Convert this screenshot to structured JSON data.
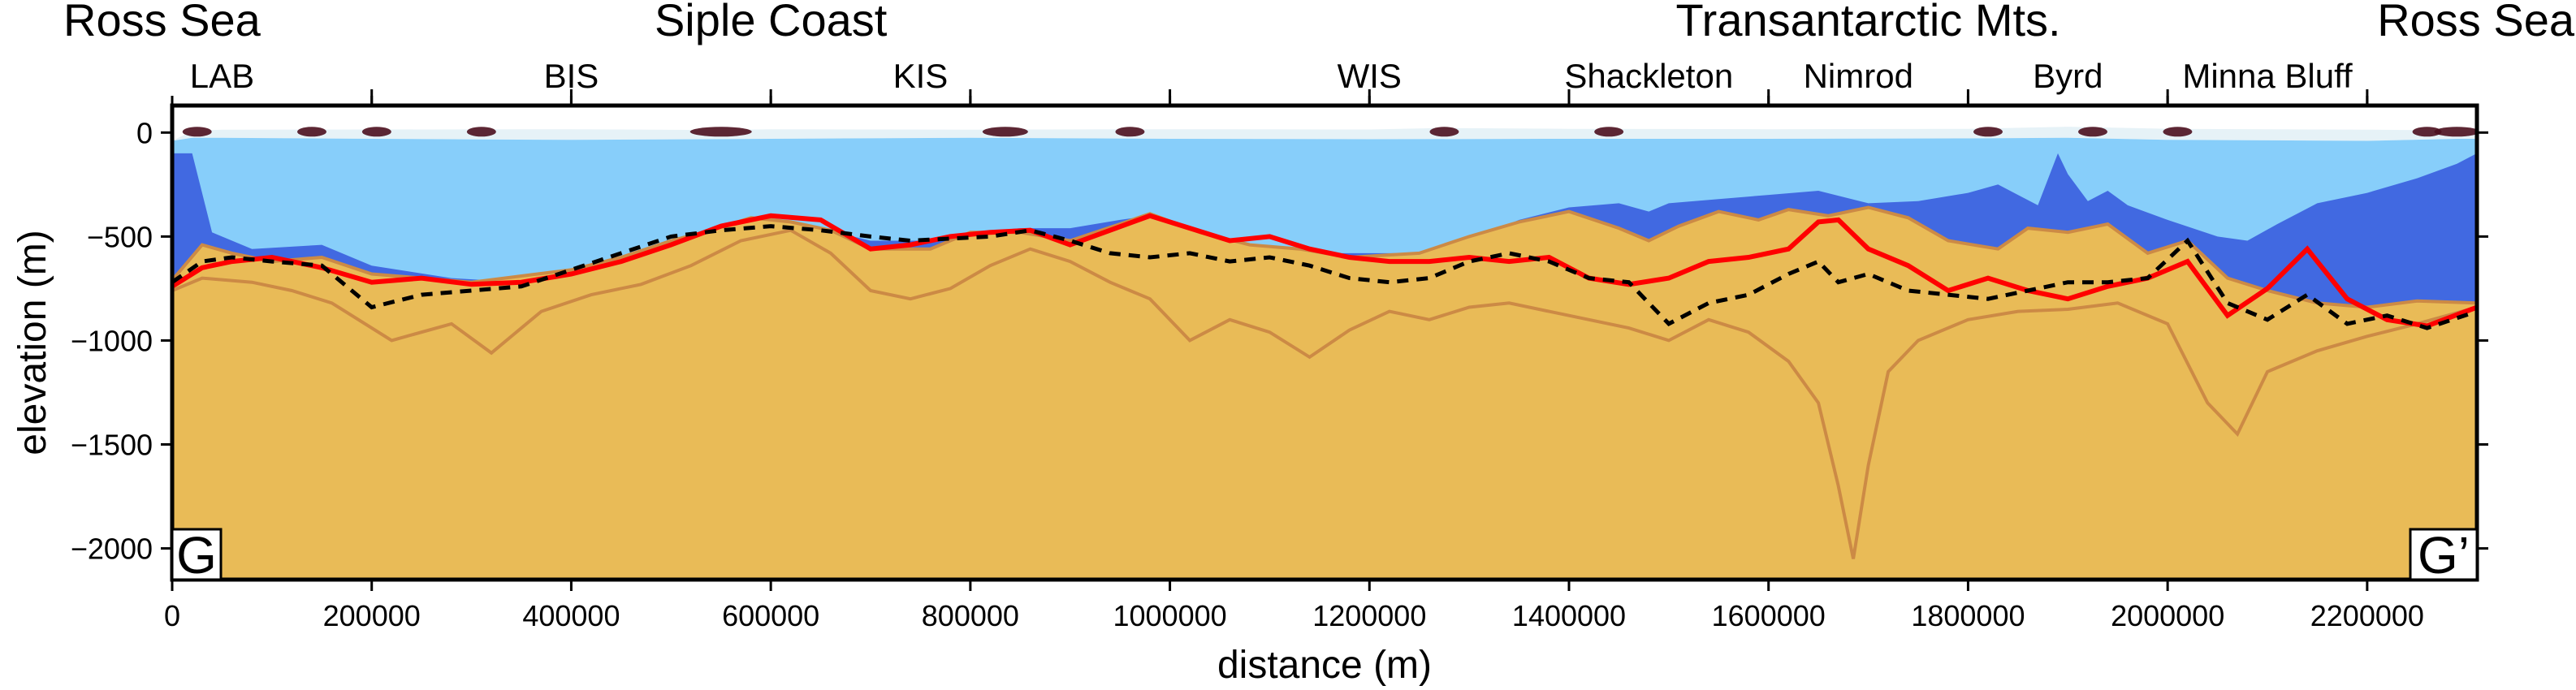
{
  "chart_data": {
    "type": "area",
    "xlabel": "distance (m)",
    "ylabel": "elevation (m)",
    "xlim": [
      0,
      2310000
    ],
    "ylim": [
      -2150,
      130
    ],
    "x_ticks": [
      0,
      200000,
      400000,
      600000,
      800000,
      1000000,
      1200000,
      1400000,
      1600000,
      1800000,
      2000000,
      2200000
    ],
    "x_tick_labels": [
      "0",
      "200000",
      "400000",
      "600000",
      "800000",
      "1000000",
      "1200000",
      "1400000",
      "1600000",
      "1800000",
      "2000000",
      "2200000"
    ],
    "y_ticks": [
      0,
      -500,
      -1000,
      -1500,
      -2000
    ],
    "y_tick_labels": [
      "0",
      "−500",
      "−1000",
      "−1500",
      "−2000"
    ],
    "region_labels": [
      {
        "text": "Ross Sea",
        "x": 0,
        "anchor": "start"
      },
      {
        "text": "Siple Coast",
        "x": 600000,
        "anchor": "middle"
      },
      {
        "text": "Transantarctic Mts.",
        "x": 1700000,
        "anchor": "middle"
      },
      {
        "text": "Ross Sea",
        "x": 2310000,
        "anchor": "end"
      }
    ],
    "glacier_labels": [
      {
        "text": "LAB",
        "x": 50000
      },
      {
        "text": "BIS",
        "x": 400000
      },
      {
        "text": "KIS",
        "x": 750000
      },
      {
        "text": "WIS",
        "x": 1200000
      },
      {
        "text": "Shackleton",
        "x": 1480000
      },
      {
        "text": "Nimrod",
        "x": 1690000
      },
      {
        "text": "Byrd",
        "x": 1900000
      },
      {
        "text": "Minna Bluff",
        "x": 2100000
      }
    ],
    "top_ticks": [
      200000,
      400000,
      600000,
      800000,
      1000000,
      1200000,
      1400000,
      1600000,
      1800000,
      2000000,
      2200000
    ],
    "profile_labels": [
      "G",
      "G’"
    ],
    "colors": {
      "ice": "#e6f2f7",
      "water": "#87cefa",
      "uncertainty": "#4169e1",
      "bed": "#e9bb57",
      "envelope": "#cc8a45",
      "inversion": "#ff0000",
      "reference": "#000000",
      "hotspot": "#4b0f1e"
    },
    "series": [
      {
        "name": "ice surface",
        "x": [
          0,
          20000,
          50000,
          200000,
          400000,
          550000,
          600000,
          800000,
          1000000,
          1200000,
          1270000,
          1400000,
          1600000,
          1800000,
          1900000,
          2000000,
          2200000,
          2290000,
          2310000
        ],
        "values": [
          -40,
          8,
          14,
          15,
          16,
          12,
          16,
          14,
          16,
          15,
          22,
          18,
          16,
          18,
          28,
          18,
          14,
          10,
          8
        ]
      },
      {
        "name": "ice base",
        "x": [
          0,
          20000,
          50000,
          200000,
          400000,
          600000,
          800000,
          1000000,
          1200000,
          1400000,
          1600000,
          1800000,
          1900000,
          2000000,
          2200000,
          2290000,
          2310000
        ],
        "values": [
          -40,
          -25,
          -25,
          -30,
          -35,
          -30,
          -25,
          -30,
          -32,
          -30,
          -30,
          -28,
          -25,
          -35,
          -40,
          -30,
          -30
        ]
      },
      {
        "name": "upper bathymetry",
        "x": [
          0,
          20000,
          40000,
          80000,
          150000,
          200000,
          280000,
          350000,
          400000,
          450000,
          500000,
          540000,
          580000,
          640000,
          700000,
          760000,
          800000,
          850000,
          900000,
          950000,
          980000,
          1030000,
          1100000,
          1150000,
          1200000,
          1250000,
          1300000,
          1350000,
          1400000,
          1450000,
          1480000,
          1500000,
          1550000,
          1600000,
          1650000,
          1700000,
          1750000,
          1800000,
          1830000,
          1850000,
          1870000,
          1890000,
          1900000,
          1920000,
          1940000,
          1960000,
          2000000,
          2050000,
          2080000,
          2110000,
          2150000,
          2200000,
          2250000,
          2290000,
          2310000
        ],
        "values": [
          -100,
          -100,
          -480,
          -560,
          -540,
          -640,
          -700,
          -720,
          -700,
          -640,
          -550,
          -470,
          -450,
          -450,
          -520,
          -520,
          -480,
          -460,
          -460,
          -420,
          -400,
          -500,
          -560,
          -580,
          -580,
          -580,
          -520,
          -420,
          -360,
          -340,
          -380,
          -340,
          -320,
          -300,
          -280,
          -340,
          -330,
          -290,
          -250,
          -300,
          -350,
          -100,
          -200,
          -330,
          -280,
          -350,
          -420,
          -500,
          -520,
          -440,
          -340,
          -290,
          -220,
          -150,
          -100
        ]
      },
      {
        "name": "lower bathymetry",
        "x": [
          0,
          40000,
          100000,
          200000,
          280000,
          350000,
          400000,
          450000,
          500000,
          550000,
          600000,
          650000,
          700000,
          750000,
          800000,
          850000,
          900000,
          950000,
          1000000,
          1050000,
          1100000,
          1150000,
          1200000,
          1250000,
          1300000,
          1350000,
          1400000,
          1450000,
          1500000,
          1550000,
          1600000,
          1640000,
          1680000,
          1720000,
          1780000,
          1830000,
          1860000,
          1900000,
          1960000,
          2000000,
          2040000,
          2070000,
          2100000,
          2150000,
          2200000,
          2250000,
          2310000
        ],
        "values": [
          -720,
          -700,
          -760,
          -820,
          -800,
          -760,
          -730,
          -700,
          -660,
          -600,
          -480,
          -520,
          -690,
          -720,
          -650,
          -520,
          -560,
          -650,
          -760,
          -750,
          -800,
          -780,
          -750,
          -780,
          -700,
          -680,
          -710,
          -800,
          -850,
          -800,
          -720,
          -760,
          -1280,
          -900,
          -870,
          -830,
          -800,
          -760,
          -720,
          -700,
          -900,
          -1250,
          -1100,
          -920,
          -900,
          -870,
          -830
        ]
      },
      {
        "name": "bed envelope upper",
        "x": [
          0,
          30000,
          60000,
          100000,
          150000,
          200000,
          250000,
          300000,
          350000,
          400000,
          450000,
          500000,
          540000,
          580000,
          620000,
          660000,
          700000,
          760000,
          800000,
          850000,
          900000,
          950000,
          980000,
          1030000,
          1080000,
          1130000,
          1180000,
          1250000,
          1300000,
          1350000,
          1400000,
          1450000,
          1480000,
          1510000,
          1550000,
          1590000,
          1620000,
          1660000,
          1700000,
          1740000,
          1780000,
          1830000,
          1860000,
          1900000,
          1940000,
          1980000,
          2020000,
          2060000,
          2100000,
          2150000,
          2200000,
          2250000,
          2310000
        ],
        "values": [
          -710,
          -540,
          -580,
          -620,
          -600,
          -680,
          -700,
          -720,
          -690,
          -660,
          -600,
          -520,
          -470,
          -410,
          -430,
          -470,
          -560,
          -560,
          -480,
          -480,
          -520,
          -440,
          -390,
          -480,
          -540,
          -560,
          -600,
          -580,
          -500,
          -430,
          -380,
          -460,
          -520,
          -450,
          -380,
          -420,
          -370,
          -400,
          -360,
          -410,
          -520,
          -560,
          -460,
          -480,
          -440,
          -580,
          -520,
          -700,
          -760,
          -820,
          -840,
          -810,
          -820
        ]
      },
      {
        "name": "bed envelope lower",
        "x": [
          0,
          30000,
          80000,
          120000,
          160000,
          220000,
          280000,
          320000,
          370000,
          420000,
          470000,
          520000,
          570000,
          620000,
          660000,
          700000,
          740000,
          780000,
          820000,
          860000,
          900000,
          940000,
          980000,
          1020000,
          1060000,
          1100000,
          1140000,
          1180000,
          1220000,
          1260000,
          1300000,
          1340000,
          1380000,
          1420000,
          1460000,
          1500000,
          1540000,
          1580000,
          1620000,
          1650000,
          1670000,
          1685000,
          1700000,
          1720000,
          1750000,
          1800000,
          1850000,
          1900000,
          1950000,
          2000000,
          2040000,
          2070000,
          2100000,
          2150000,
          2200000,
          2250000,
          2310000
        ],
        "values": [
          -760,
          -700,
          -720,
          -760,
          -820,
          -1000,
          -920,
          -1060,
          -860,
          -780,
          -730,
          -640,
          -520,
          -470,
          -580,
          -760,
          -800,
          -750,
          -640,
          -560,
          -620,
          -720,
          -800,
          -1000,
          -900,
          -960,
          -1080,
          -950,
          -860,
          -900,
          -840,
          -820,
          -860,
          -900,
          -940,
          -1000,
          -900,
          -960,
          -1100,
          -1300,
          -1700,
          -2050,
          -1600,
          -1150,
          -1000,
          -900,
          -860,
          -850,
          -820,
          -920,
          -1300,
          -1450,
          -1150,
          -1050,
          -980,
          -920,
          -840
        ]
      },
      {
        "name": "inversion bed (red)",
        "x": [
          0,
          30000,
          60000,
          100000,
          150000,
          200000,
          250000,
          300000,
          350000,
          400000,
          450000,
          500000,
          550000,
          600000,
          650000,
          700000,
          740000,
          780000,
          820000,
          860000,
          900000,
          940000,
          980000,
          1020000,
          1060000,
          1100000,
          1140000,
          1180000,
          1220000,
          1260000,
          1300000,
          1340000,
          1380000,
          1420000,
          1460000,
          1500000,
          1540000,
          1580000,
          1620000,
          1650000,
          1670000,
          1700000,
          1740000,
          1780000,
          1820000,
          1860000,
          1900000,
          1940000,
          1980000,
          2020000,
          2060000,
          2100000,
          2140000,
          2180000,
          2220000,
          2260000,
          2310000
        ],
        "values": [
          -740,
          -650,
          -620,
          -600,
          -650,
          -720,
          -700,
          -730,
          -720,
          -680,
          -620,
          -540,
          -450,
          -400,
          -420,
          -560,
          -540,
          -500,
          -480,
          -470,
          -540,
          -470,
          -400,
          -460,
          -520,
          -500,
          -560,
          -600,
          -620,
          -620,
          -600,
          -620,
          -600,
          -700,
          -730,
          -700,
          -620,
          -600,
          -560,
          -430,
          -420,
          -560,
          -640,
          -760,
          -700,
          -760,
          -800,
          -740,
          -700,
          -620,
          -880,
          -750,
          -560,
          -800,
          -900,
          -930,
          -840
        ]
      },
      {
        "name": "reference bed (black dashed)",
        "x": [
          0,
          30000,
          60000,
          100000,
          150000,
          200000,
          250000,
          300000,
          350000,
          400000,
          450000,
          500000,
          550000,
          600000,
          650000,
          700000,
          740000,
          780000,
          820000,
          860000,
          900000,
          940000,
          980000,
          1020000,
          1060000,
          1100000,
          1140000,
          1180000,
          1220000,
          1260000,
          1300000,
          1340000,
          1380000,
          1420000,
          1460000,
          1500000,
          1540000,
          1580000,
          1620000,
          1650000,
          1670000,
          1700000,
          1740000,
          1780000,
          1820000,
          1860000,
          1900000,
          1940000,
          1980000,
          2020000,
          2060000,
          2100000,
          2140000,
          2180000,
          2220000,
          2260000,
          2310000
        ],
        "values": [
          -720,
          -620,
          -600,
          -620,
          -640,
          -840,
          -780,
          -760,
          -740,
          -660,
          -580,
          -500,
          -470,
          -450,
          -470,
          -500,
          -520,
          -510,
          -500,
          -470,
          -520,
          -580,
          -600,
          -580,
          -620,
          -600,
          -640,
          -700,
          -720,
          -700,
          -620,
          -580,
          -620,
          -700,
          -720,
          -920,
          -820,
          -780,
          -680,
          -620,
          -720,
          -680,
          -760,
          -780,
          -800,
          -760,
          -720,
          -720,
          -700,
          -520,
          -820,
          -900,
          -780,
          -920,
          -880,
          -940,
          -860
        ]
      }
    ],
    "hotspots": [
      {
        "x": 25000,
        "size": 1
      },
      {
        "x": 140000,
        "size": 1
      },
      {
        "x": 205000,
        "size": 1
      },
      {
        "x": 310000,
        "size": 1
      },
      {
        "x": 550000,
        "size": 3
      },
      {
        "x": 835000,
        "size": 2
      },
      {
        "x": 960000,
        "size": 1
      },
      {
        "x": 1275000,
        "size": 1
      },
      {
        "x": 1440000,
        "size": 1
      },
      {
        "x": 1820000,
        "size": 1
      },
      {
        "x": 1925000,
        "size": 1
      },
      {
        "x": 2010000,
        "size": 1
      },
      {
        "x": 2260000,
        "size": 1
      },
      {
        "x": 2290000,
        "size": 2
      }
    ]
  }
}
